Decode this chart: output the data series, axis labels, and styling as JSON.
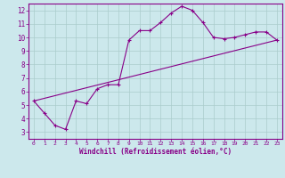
{
  "title": "",
  "xlabel": "Windchill (Refroidissement éolien,°C)",
  "ylabel": "",
  "bg_color": "#cce8ec",
  "line_color": "#880088",
  "grid_color": "#aacccc",
  "xlim": [
    -0.5,
    23.5
  ],
  "ylim": [
    2.5,
    12.5
  ],
  "xticks": [
    0,
    1,
    2,
    3,
    4,
    5,
    6,
    7,
    8,
    9,
    10,
    11,
    12,
    13,
    14,
    15,
    16,
    17,
    18,
    19,
    20,
    21,
    22,
    23
  ],
  "yticks": [
    3,
    4,
    5,
    6,
    7,
    8,
    9,
    10,
    11,
    12
  ],
  "data_line_x": [
    0,
    1,
    2,
    3,
    4,
    5,
    6,
    7,
    8,
    9,
    10,
    11,
    12,
    13,
    14,
    15,
    16,
    17,
    18,
    19,
    20,
    21,
    22,
    23
  ],
  "data_line_y": [
    5.3,
    4.4,
    3.5,
    3.2,
    5.3,
    5.1,
    6.2,
    6.5,
    6.5,
    9.8,
    10.5,
    10.5,
    11.1,
    11.8,
    12.3,
    12.0,
    11.1,
    10.0,
    9.9,
    10.0,
    10.2,
    10.4,
    10.4,
    9.8
  ],
  "ref_line_x": [
    0,
    23
  ],
  "ref_line_y": [
    5.3,
    9.8
  ]
}
